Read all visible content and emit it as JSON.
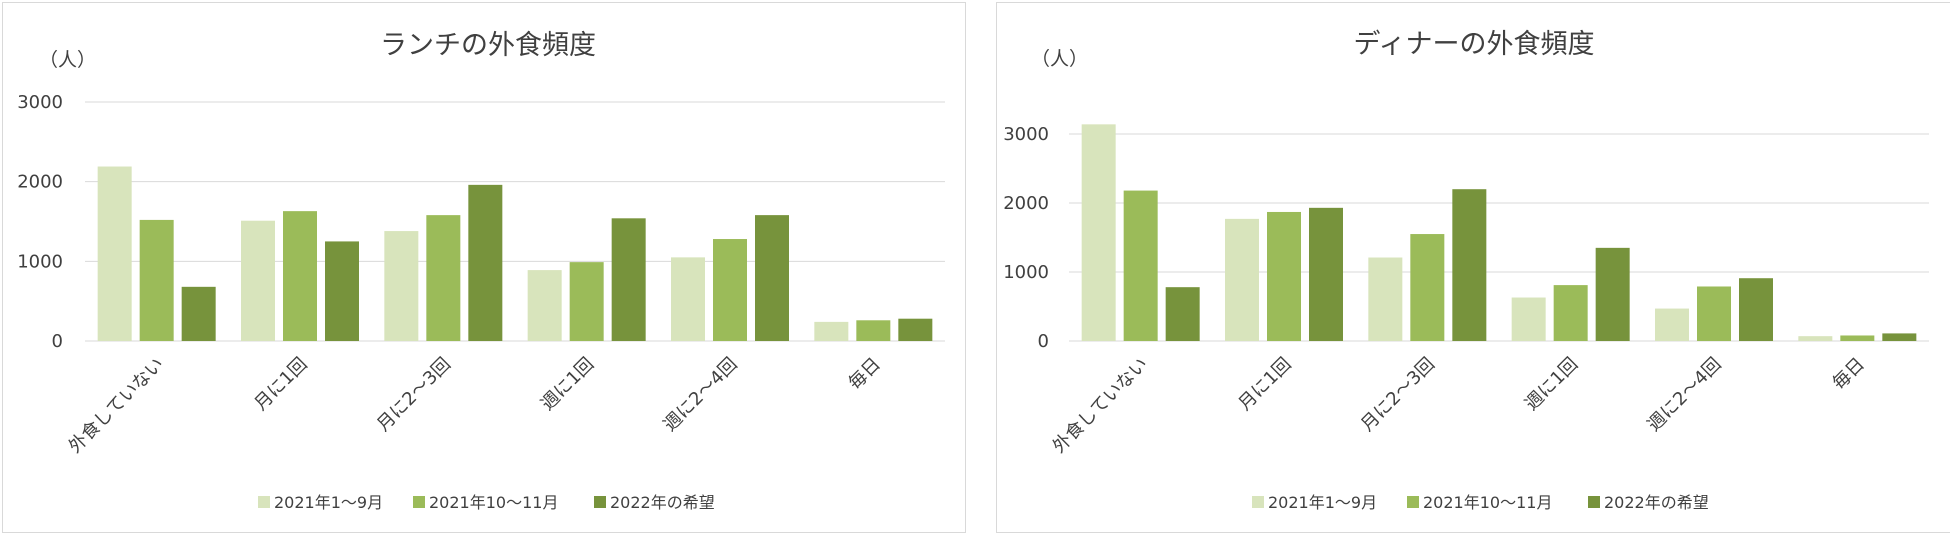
{
  "chart_data": [
    {
      "type": "bar",
      "title": "ランチの外食頻度",
      "ylabel": "（人）",
      "ylim": [
        0,
        3000
      ],
      "yticks": [
        0,
        1000,
        2000,
        3000
      ],
      "grid": true,
      "legend_position": "bottom",
      "categories": [
        "外食していない",
        "月に1回",
        "月に2～3回",
        "週に1回",
        "週に2～4回",
        "毎日"
      ],
      "series": [
        {
          "name": "2021年1～9月",
          "color": "#d8e4bc",
          "values": [
            2190,
            1510,
            1380,
            890,
            1050,
            240
          ]
        },
        {
          "name": "2021年10～11月",
          "color": "#9bbb59",
          "values": [
            1520,
            1630,
            1580,
            990,
            1280,
            260
          ]
        },
        {
          "name": "2022年の希望",
          "color": "#77933c",
          "values": [
            680,
            1250,
            1960,
            1540,
            1580,
            280
          ]
        }
      ]
    },
    {
      "type": "bar",
      "title": "ディナーの外食頻度",
      "ylabel": "（人）",
      "ylim": [
        0,
        3000
      ],
      "yticks": [
        0,
        1000,
        2000,
        3000
      ],
      "grid": true,
      "legend_position": "bottom",
      "categories": [
        "外食していない",
        "月に1回",
        "月に2～3回",
        "週に1回",
        "週に2～4回",
        "毎日"
      ],
      "series": [
        {
          "name": "2021年1～9月",
          "color": "#d8e4bc",
          "values": [
            3140,
            1770,
            1210,
            630,
            470,
            70
          ]
        },
        {
          "name": "2021年10～11月",
          "color": "#9bbb59",
          "values": [
            2180,
            1870,
            1550,
            810,
            790,
            80
          ]
        },
        {
          "name": "2022年の希望",
          "color": "#77933c",
          "values": [
            780,
            1930,
            2200,
            1350,
            910,
            110
          ]
        }
      ]
    }
  ]
}
